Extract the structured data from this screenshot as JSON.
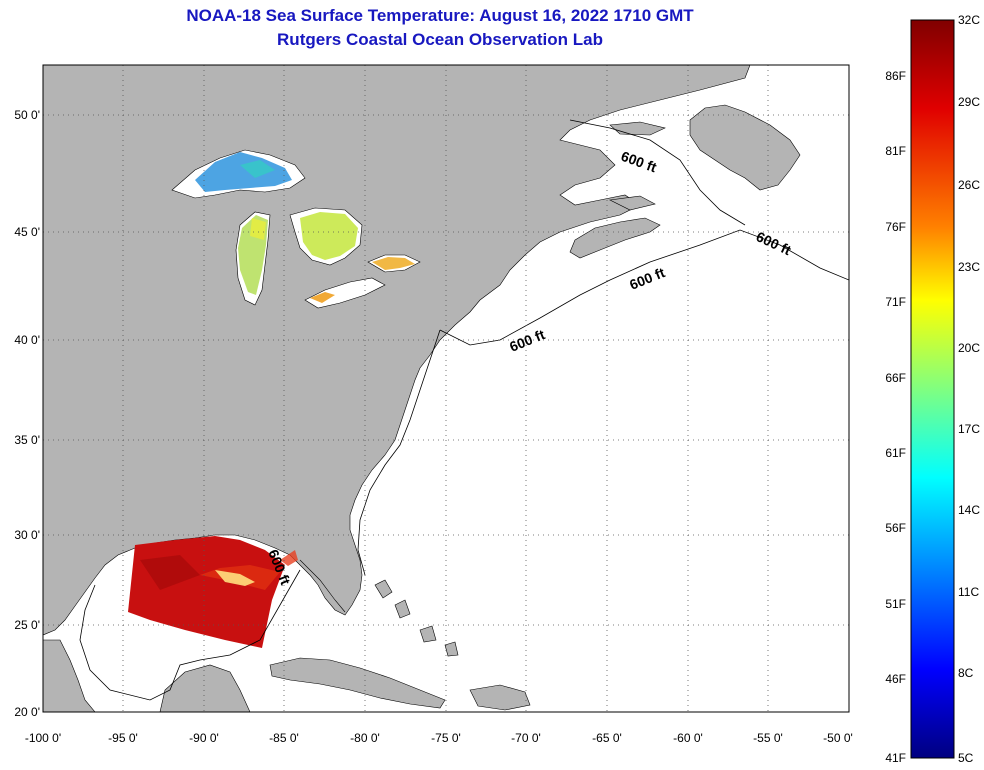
{
  "title": {
    "line1": "NOAA-18 Sea Surface Temperature:  August 16, 2022 1710 GMT",
    "line2": "Rutgers Coastal Ocean Observation Lab"
  },
  "map": {
    "lat_labels": [
      "50 0'",
      "45 0'",
      "40 0'",
      "35 0'",
      "30 0'",
      "25 0'",
      "20 0'"
    ],
    "lon_labels": [
      "-100 0'",
      "-95 0'",
      "-90 0'",
      "-85 0'",
      "-80 0'",
      "-75 0'",
      "-70 0'",
      "-65 0'",
      "-60 0'",
      "-55 0'",
      "-50 0'"
    ],
    "contour_label": "600 ft",
    "land_color": "#b4b4b4",
    "ocean_color": "#ffffff"
  },
  "colorbar": {
    "celsius_labels": [
      "32C",
      "29C",
      "26C",
      "23C",
      "20C",
      "17C",
      "14C",
      "11C",
      "8C",
      "5C"
    ],
    "fahrenheit_labels": [
      "86F",
      "81F",
      "76F",
      "71F",
      "66F",
      "61F",
      "56F",
      "51F",
      "46F",
      "41F"
    ]
  }
}
